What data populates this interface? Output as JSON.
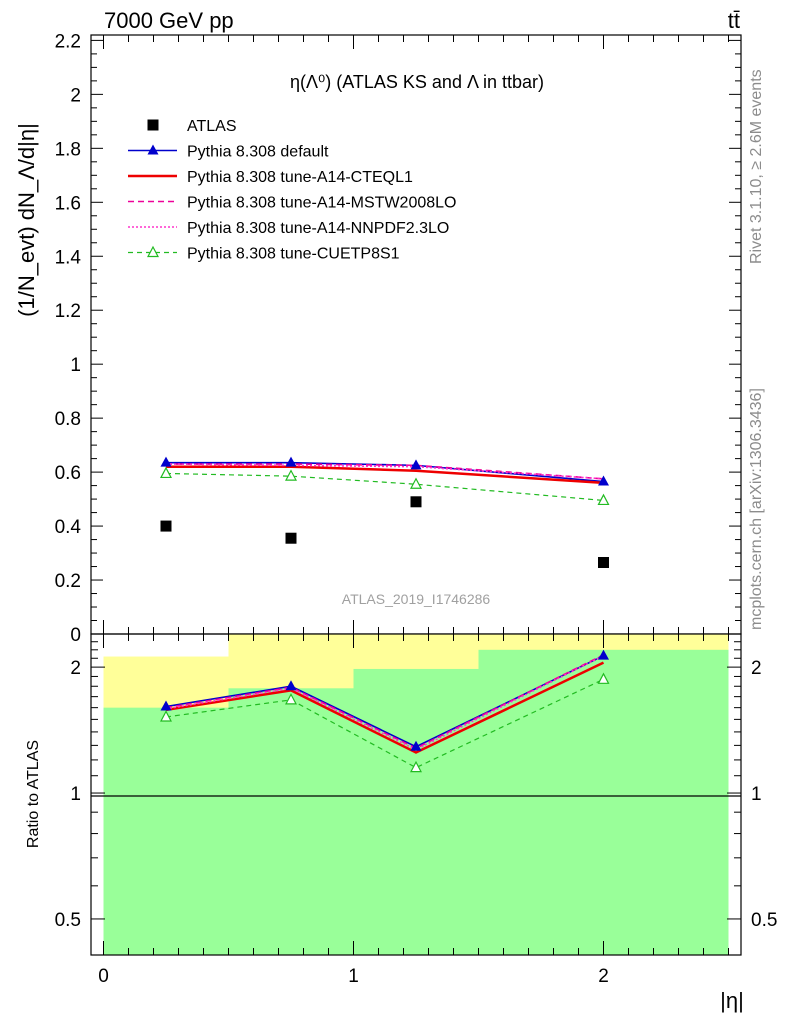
{
  "header": {
    "left": "7000 GeV pp",
    "right": "tt̄"
  },
  "side_labels": {
    "rivet": "Rivet 3.1.10, ≥ 2.6M events",
    "mcplots": "mcplots.cern.ch [arXiv:1306.3436]"
  },
  "watermark": "ATLAS_2019_I1746286",
  "chart_data": [
    {
      "type": "line",
      "title": "η(Λ⁰) (ATLAS KS and Λ in ttbar)",
      "ylabel": "(1/N_evt) dN_Λ/d|η|",
      "xlabel": "",
      "xlim": [
        -0.05,
        2.55
      ],
      "ylim": [
        0,
        2.22
      ],
      "yticks": [
        "0",
        "0.2",
        "0.4",
        "0.6",
        "0.8",
        "1",
        "1.2",
        "1.4",
        "1.6",
        "1.8",
        "2",
        "2.2"
      ],
      "x": [
        0.25,
        0.75,
        1.25,
        2.0
      ],
      "legend_position": "top-left",
      "series": [
        {
          "name": "ATLAS",
          "values": [
            0.4,
            0.355,
            0.49,
            0.265
          ],
          "color": "#000000",
          "marker": "square"
        },
        {
          "name": "Pythia 8.308 default",
          "values": [
            0.635,
            0.635,
            0.625,
            0.565
          ],
          "color": "#0000cc",
          "marker": "triangle"
        },
        {
          "name": "Pythia 8.308 tune-A14-CTEQL1",
          "values": [
            0.62,
            0.62,
            0.605,
            0.56
          ],
          "color": "#ee0000",
          "marker": "none"
        },
        {
          "name": "Pythia 8.308 tune-A14-MSTW2008LO",
          "values": [
            0.63,
            0.63,
            0.625,
            0.575
          ],
          "color": "#ee0099",
          "marker": "none"
        },
        {
          "name": "Pythia 8.308 tune-A14-NNPDF2.3LO",
          "values": [
            0.63,
            0.625,
            0.62,
            0.575
          ],
          "color": "#ff33cc",
          "marker": "none"
        },
        {
          "name": "Pythia 8.308 tune-CUETP8S1",
          "values": [
            0.595,
            0.585,
            0.555,
            0.495
          ],
          "color": "#22bb22",
          "marker": "open-triangle"
        }
      ]
    },
    {
      "type": "line",
      "ylabel": "Ratio to ATLAS",
      "xlabel": "|η|",
      "xlim": [
        -0.05,
        2.55
      ],
      "ylim": [
        0.41,
        2.4
      ],
      "yscale": "log",
      "yticks": [
        "0.5",
        "1",
        "2"
      ],
      "xticks": [
        "0",
        "1",
        "2"
      ],
      "x": [
        0.25,
        0.75,
        1.25,
        2.0
      ],
      "bands": {
        "bins": [
          [
            0,
            0.5
          ],
          [
            0.5,
            1.0
          ],
          [
            1.0,
            1.5
          ],
          [
            1.5,
            2.5
          ]
        ],
        "green": [
          [
            0.41,
            1.6
          ],
          [
            0.41,
            1.78
          ],
          [
            0.41,
            1.98
          ],
          [
            0.41,
            2.2
          ]
        ],
        "yellow": [
          [
            0.44,
            2.12
          ],
          [
            0.41,
            2.4
          ],
          [
            0.41,
            2.4
          ],
          [
            0.41,
            2.4
          ]
        ]
      },
      "series": [
        {
          "name": "Pythia 8.308 default",
          "values": [
            1.61,
            1.8,
            1.29,
            2.13
          ],
          "color": "#0000cc",
          "marker": "triangle"
        },
        {
          "name": "Pythia 8.308 tune-A14-CTEQL1",
          "values": [
            1.58,
            1.76,
            1.25,
            2.05
          ],
          "color": "#ee0000",
          "marker": "none"
        },
        {
          "name": "Pythia 8.308 tune-A14-MSTW2008LO",
          "values": [
            1.6,
            1.79,
            1.28,
            2.14
          ],
          "color": "#ee0099",
          "marker": "none"
        },
        {
          "name": "Pythia 8.308 tune-A14-NNPDF2.3LO",
          "values": [
            1.59,
            1.78,
            1.27,
            2.13
          ],
          "color": "#ff33cc",
          "marker": "none"
        },
        {
          "name": "Pythia 8.308 tune-CUETP8S1",
          "values": [
            1.52,
            1.67,
            1.15,
            1.87
          ],
          "color": "#22bb22",
          "marker": "open-triangle"
        }
      ]
    }
  ]
}
